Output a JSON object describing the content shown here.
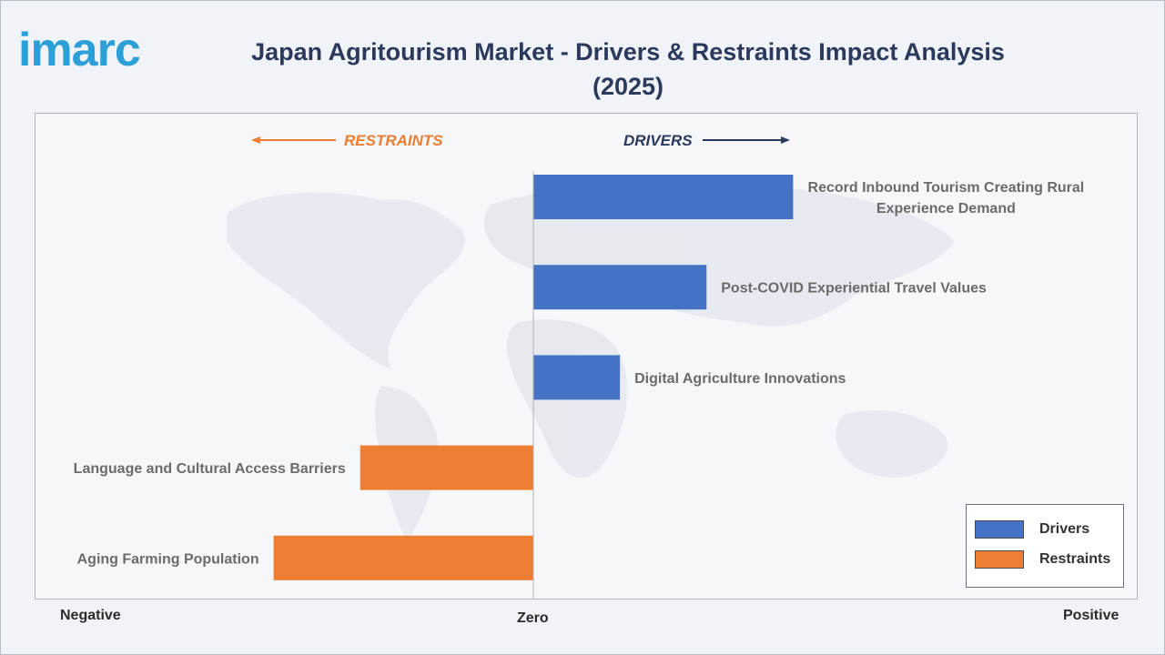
{
  "brand": {
    "logo_text": "imarc",
    "color": "#2a9fd8"
  },
  "title": "Japan Agritourism Market - Drivers & Restraints Impact Analysis (2025)",
  "directions": {
    "restraints": "RESTRAINTS",
    "drivers": "DRIVERS"
  },
  "axis": {
    "negative": "Negative",
    "zero": "Zero",
    "positive": "Positive"
  },
  "legend": {
    "drivers": "Drivers",
    "restraints": "Restraints"
  },
  "colors": {
    "drivers": "#4472c4",
    "restraints": "#ed7d31",
    "title": "#2b3a5c",
    "restraints_text": "#ed7d31",
    "drivers_text": "#2b3a5c"
  },
  "chart_data": {
    "type": "bar",
    "orientation": "horizontal",
    "title": "Japan Agritourism Market - Drivers & Restraints Impact Analysis (2025)",
    "categories": [
      "Record Inbound Tourism Creating Rural Experience Demand",
      "Post-COVID Experiential Travel Values",
      "Digital Agriculture Innovations",
      "Language and Cultural Access Barriers",
      "Aging Farming Population"
    ],
    "series": [
      {
        "name": "Drivers",
        "values": [
          3.0,
          2.0,
          1.0,
          null,
          null
        ]
      },
      {
        "name": "Restraints",
        "values": [
          null,
          null,
          null,
          -2.0,
          -3.0
        ]
      }
    ],
    "xlim": [
      -5.75,
      6.9
    ],
    "grid": false,
    "legend_position": "bottom-right"
  }
}
